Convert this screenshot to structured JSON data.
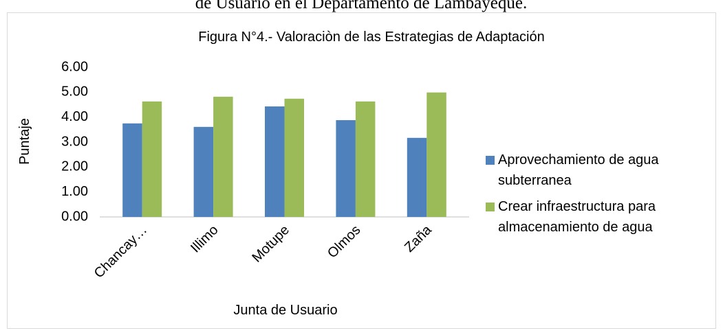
{
  "caption": "de Usuario en el Departamento de Lambayeque.",
  "chart_data": {
    "type": "bar",
    "title": "Figura N°4.- Valoraciòn de las Estrategias de Adaptación",
    "x_label": "Junta de Usuario",
    "y_label": "Puntaje",
    "categories": [
      "Chancay…",
      "Illimo",
      "Motupe",
      "Olmos",
      "Zaña"
    ],
    "series": [
      {
        "name": "Aprovechamiento de agua subterranea",
        "color": "#4f81bd",
        "values": [
          3.75,
          3.61,
          4.43,
          3.88,
          3.17
        ]
      },
      {
        "name": "Crear infraestructura para almacenamiento de agua",
        "color": "#9bbb59",
        "values": [
          4.63,
          4.82,
          4.74,
          4.63,
          4.99
        ]
      }
    ],
    "ylim": [
      0,
      6
    ],
    "yticks": [
      {
        "value": 0,
        "label": "0.00"
      },
      {
        "value": 1,
        "label": "1.00"
      },
      {
        "value": 2,
        "label": "2.00"
      },
      {
        "value": 3,
        "label": "3.00"
      },
      {
        "value": 4,
        "label": "4.00"
      },
      {
        "value": 5,
        "label": "5.00"
      },
      {
        "value": 6,
        "label": "6.00"
      }
    ],
    "grid": false,
    "legend": "right"
  }
}
